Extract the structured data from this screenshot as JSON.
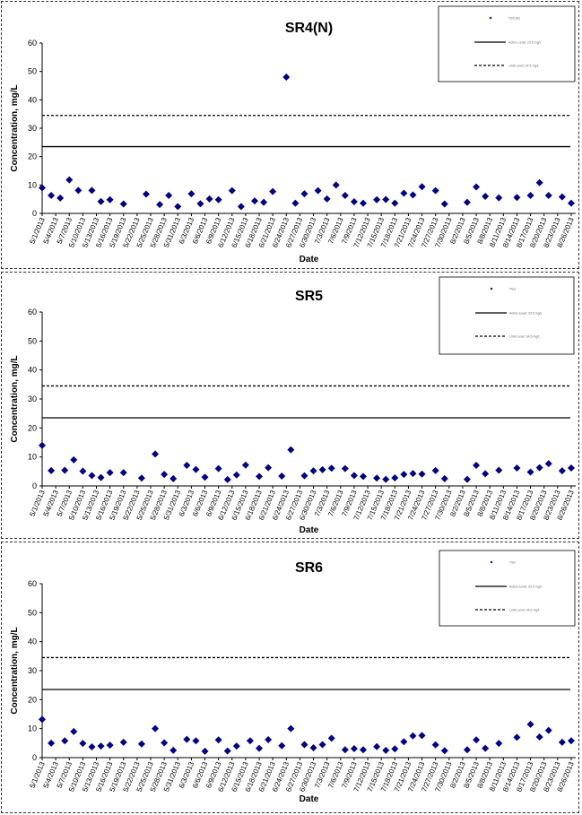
{
  "colors": {
    "marker": "#000080",
    "line": "#000000"
  },
  "x_dates": [
    "5/1/2013",
    "5/4/2013",
    "5/7/2013",
    "5/10/2013",
    "5/13/2013",
    "5/16/2013",
    "5/19/2013",
    "5/22/2013",
    "5/25/2013",
    "5/28/2013",
    "5/31/2013",
    "6/3/2013",
    "6/6/2013",
    "6/9/2013",
    "6/12/2013",
    "6/15/2013",
    "6/18/2013",
    "6/21/2013",
    "6/24/2013",
    "6/27/2013",
    "6/30/2013",
    "7/3/2013",
    "7/6/2013",
    "7/9/2013",
    "7/12/2013",
    "7/15/2013",
    "7/18/2013",
    "7/21/2013",
    "7/24/2013",
    "7/27/2013",
    "7/30/2013",
    "8/2/2013",
    "8/5/2013",
    "8/8/2013",
    "8/11/2013",
    "8/14/2013",
    "8/17/2013",
    "8/20/2013",
    "8/23/2013",
    "8/26/2013"
  ],
  "chart_data": [
    {
      "type": "scatter",
      "title": "SR4(N)",
      "xlabel": "Date",
      "ylabel": "Concentration, mg/L",
      "ylim": [
        0,
        60
      ],
      "yticks": [
        0,
        10,
        20,
        30,
        40,
        50,
        60
      ],
      "xlim": [
        "5/1/2013",
        "8/27/2013"
      ],
      "grid": false,
      "legend_position": "top-right",
      "legend": [
        "TSS (N)",
        "Action Level: 23.5 mg/L",
        "Limit Level: 34.5 mg/L"
      ],
      "reference_lines": [
        {
          "y": 23.5,
          "style": "solid"
        },
        {
          "y": 34.5,
          "style": "dashed"
        }
      ],
      "points": [
        [
          "5/1/2013",
          9
        ],
        [
          "5/3/2013",
          6.3
        ],
        [
          "5/5/2013",
          5.4
        ],
        [
          "5/7/2013",
          11.8
        ],
        [
          "5/9/2013",
          8.1
        ],
        [
          "5/12/2013",
          8.1
        ],
        [
          "5/14/2013",
          4.2
        ],
        [
          "5/16/2013",
          4.8
        ],
        [
          "5/19/2013",
          3.3
        ],
        [
          "5/24/2013",
          6.8
        ],
        [
          "5/27/2013",
          3.1
        ],
        [
          "5/29/2013",
          6.3
        ],
        [
          "5/31/2013",
          2.4
        ],
        [
          "6/3/2013",
          6.9
        ],
        [
          "6/5/2013",
          3.4
        ],
        [
          "6/7/2013",
          5.1
        ],
        [
          "6/9/2013",
          4.8
        ],
        [
          "6/12/2013",
          8
        ],
        [
          "6/14/2013",
          2.4
        ],
        [
          "6/17/2013",
          4.4
        ],
        [
          "6/19/2013",
          3.9
        ],
        [
          "6/21/2013",
          7.7
        ],
        [
          "6/24/2013",
          48
        ],
        [
          "6/26/2013",
          3.6
        ],
        [
          "6/28/2013",
          6.9
        ],
        [
          "7/1/2013",
          8
        ],
        [
          "7/3/2013",
          5.1
        ],
        [
          "7/5/2013",
          10
        ],
        [
          "7/7/2013",
          6.3
        ],
        [
          "7/9/2013",
          4.1
        ],
        [
          "7/11/2013",
          3.6
        ],
        [
          "7/14/2013",
          4.8
        ],
        [
          "7/16/2013",
          4.9
        ],
        [
          "7/18/2013",
          3.6
        ],
        [
          "7/20/2013",
          7.1
        ],
        [
          "7/22/2013",
          6.5
        ],
        [
          "7/24/2013",
          9.4
        ],
        [
          "7/27/2013",
          8
        ],
        [
          "7/29/2013",
          3.3
        ],
        [
          "8/3/2013",
          3.9
        ],
        [
          "8/5/2013",
          9.3
        ],
        [
          "8/7/2013",
          6
        ],
        [
          "8/10/2013",
          5.5
        ],
        [
          "8/14/2013",
          5.6
        ],
        [
          "8/17/2013",
          6.3
        ],
        [
          "8/19/2013",
          10.8
        ],
        [
          "8/21/2013",
          6.3
        ],
        [
          "8/24/2013",
          5.8
        ],
        [
          "8/26/2013",
          3.6
        ]
      ]
    },
    {
      "type": "scatter",
      "title": "SR5",
      "xlabel": "Date",
      "ylabel": "Concentration, mg/L",
      "ylim": [
        0,
        60
      ],
      "yticks": [
        0,
        10,
        20,
        30,
        40,
        50,
        60
      ],
      "xlim": [
        "5/1/2013",
        "8/27/2013"
      ],
      "grid": false,
      "legend_position": "top-right",
      "legend": [
        "TSS",
        "Action Level: 23.5 mg/L",
        "Limit Level: 34.5 mg/L"
      ],
      "reference_lines": [
        {
          "y": 23.5,
          "style": "solid"
        },
        {
          "y": 34.5,
          "style": "dashed"
        }
      ],
      "points": [
        [
          "5/1/2013",
          14
        ],
        [
          "5/3/2013",
          5.3
        ],
        [
          "5/6/2013",
          5.4
        ],
        [
          "5/8/2013",
          9
        ],
        [
          "5/10/2013",
          5.1
        ],
        [
          "5/12/2013",
          3.6
        ],
        [
          "5/14/2013",
          2.9
        ],
        [
          "5/16/2013",
          4.6
        ],
        [
          "5/19/2013",
          4.6
        ],
        [
          "5/23/2013",
          2.7
        ],
        [
          "5/26/2013",
          11
        ],
        [
          "5/28/2013",
          4
        ],
        [
          "5/30/2013",
          2.5
        ],
        [
          "6/2/2013",
          7.1
        ],
        [
          "6/4/2013",
          5.7
        ],
        [
          "6/6/2013",
          3
        ],
        [
          "6/9/2013",
          6
        ],
        [
          "6/11/2013",
          2.2
        ],
        [
          "6/13/2013",
          3.8
        ],
        [
          "6/15/2013",
          7.2
        ],
        [
          "6/18/2013",
          3.3
        ],
        [
          "6/20/2013",
          6.3
        ],
        [
          "6/23/2013",
          3.4
        ],
        [
          "6/25/2013",
          12.5
        ],
        [
          "6/28/2013",
          3.5
        ],
        [
          "6/30/2013",
          5.2
        ],
        [
          "7/2/2013",
          5.6
        ],
        [
          "7/4/2013",
          6.1
        ],
        [
          "7/7/2013",
          6
        ],
        [
          "7/9/2013",
          3.6
        ],
        [
          "7/11/2013",
          3.3
        ],
        [
          "7/14/2013",
          2.7
        ],
        [
          "7/16/2013",
          2.3
        ],
        [
          "7/18/2013",
          2.8
        ],
        [
          "7/20/2013",
          4
        ],
        [
          "7/22/2013",
          4.3
        ],
        [
          "7/24/2013",
          4.1
        ],
        [
          "7/27/2013",
          5.3
        ],
        [
          "7/29/2013",
          2.5
        ],
        [
          "8/3/2013",
          2.3
        ],
        [
          "8/5/2013",
          7.1
        ],
        [
          "8/7/2013",
          4.2
        ],
        [
          "8/10/2013",
          5.4
        ],
        [
          "8/14/2013",
          6.2
        ],
        [
          "8/17/2013",
          4.8
        ],
        [
          "8/19/2013",
          6.3
        ],
        [
          "8/21/2013",
          7.7
        ],
        [
          "8/24/2013",
          5.2
        ],
        [
          "8/26/2013",
          6.2
        ]
      ]
    },
    {
      "type": "scatter",
      "title": "SR6",
      "xlabel": "Date",
      "ylabel": "Concentration, mg/L",
      "ylim": [
        0,
        60
      ],
      "yticks": [
        0,
        10,
        20,
        30,
        40,
        50,
        60
      ],
      "xlim": [
        "5/1/2013",
        "8/27/2013"
      ],
      "grid": false,
      "legend_position": "top-right",
      "legend": [
        "TSS",
        "Action Level: 23.5 mg/L",
        "Limit Level: 34.5 mg/L"
      ],
      "reference_lines": [
        {
          "y": 23.5,
          "style": "solid"
        },
        {
          "y": 34.5,
          "style": "dashed"
        }
      ],
      "points": [
        [
          "5/1/2013",
          13.2
        ],
        [
          "5/3/2013",
          5
        ],
        [
          "5/6/2013",
          5.8
        ],
        [
          "5/8/2013",
          9
        ],
        [
          "5/10/2013",
          4.9
        ],
        [
          "5/12/2013",
          3.7
        ],
        [
          "5/14/2013",
          4
        ],
        [
          "5/16/2013",
          4.3
        ],
        [
          "5/19/2013",
          5.3
        ],
        [
          "5/23/2013",
          4.7
        ],
        [
          "5/26/2013",
          10
        ],
        [
          "5/28/2013",
          5.1
        ],
        [
          "5/30/2013",
          2.5
        ],
        [
          "6/2/2013",
          6.3
        ],
        [
          "6/4/2013",
          5.8
        ],
        [
          "6/6/2013",
          2.2
        ],
        [
          "6/9/2013",
          6.1
        ],
        [
          "6/11/2013",
          2.3
        ],
        [
          "6/13/2013",
          4
        ],
        [
          "6/16/2013",
          5.8
        ],
        [
          "6/18/2013",
          3.2
        ],
        [
          "6/20/2013",
          6.2
        ],
        [
          "6/23/2013",
          4.1
        ],
        [
          "6/25/2013",
          10
        ],
        [
          "6/28/2013",
          4.5
        ],
        [
          "6/30/2013",
          3.4
        ],
        [
          "7/2/2013",
          4.5
        ],
        [
          "7/4/2013",
          6.7
        ],
        [
          "7/7/2013",
          2.7
        ],
        [
          "7/9/2013",
          3.1
        ],
        [
          "7/11/2013",
          2.7
        ],
        [
          "7/14/2013",
          3.8
        ],
        [
          "7/16/2013",
          2.5
        ],
        [
          "7/18/2013",
          3
        ],
        [
          "7/20/2013",
          5.5
        ],
        [
          "7/22/2013",
          7.5
        ],
        [
          "7/24/2013",
          7.6
        ],
        [
          "7/27/2013",
          4.4
        ],
        [
          "7/29/2013",
          2.4
        ],
        [
          "8/3/2013",
          2.7
        ],
        [
          "8/5/2013",
          6.1
        ],
        [
          "8/7/2013",
          3.2
        ],
        [
          "8/10/2013",
          4.9
        ],
        [
          "8/14/2013",
          7
        ],
        [
          "8/17/2013",
          11.5
        ],
        [
          "8/19/2013",
          7.1
        ],
        [
          "8/21/2013",
          9.4
        ],
        [
          "8/24/2013",
          5.3
        ],
        [
          "8/26/2013",
          5.8
        ]
      ]
    }
  ]
}
